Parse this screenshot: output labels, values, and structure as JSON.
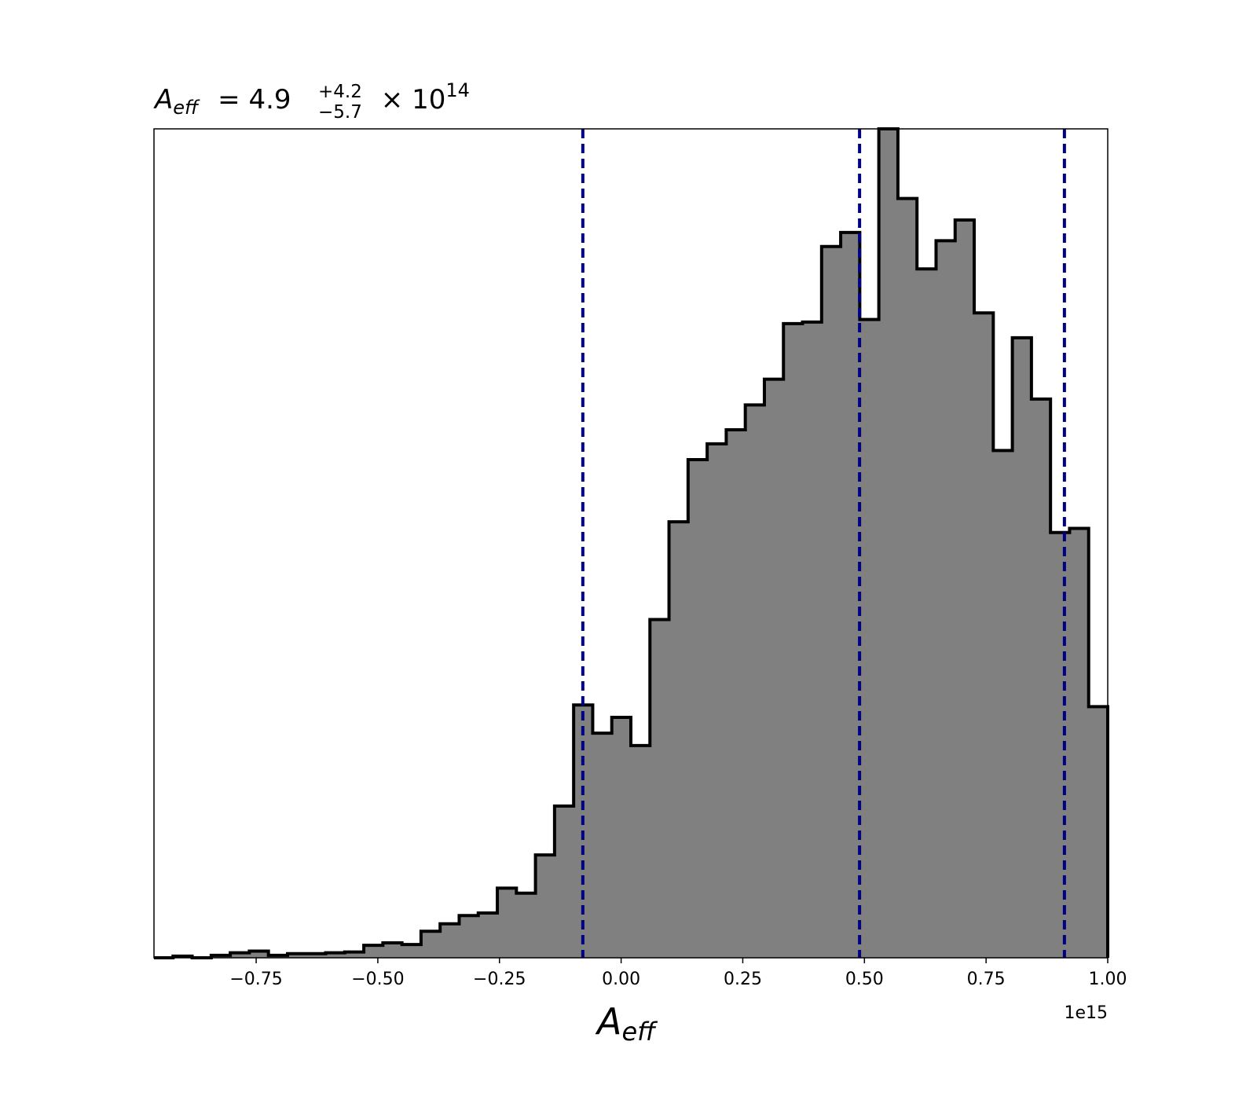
{
  "chart_data": {
    "type": "bar",
    "title": {
      "symbol": "A",
      "symbol_sub": "eff",
      "equals": " = 4.9",
      "upper": "+4.2",
      "lower": "−5.7",
      "times": " × 10",
      "exponent": "14"
    },
    "xlabel": {
      "symbol": "A",
      "sub": "eff"
    },
    "ylabel": "",
    "x_offset_label": "1e15",
    "x_unit_scale": 1000000000000000.0,
    "xlim": [
      -0.96,
      1.0
    ],
    "ylim": [
      0,
      1.0
    ],
    "x_ticks": [
      -0.75,
      -0.5,
      -0.25,
      0.0,
      0.25,
      0.5,
      0.75,
      1.0
    ],
    "x_tick_labels": [
      "−0.75",
      "−0.50",
      "−0.25",
      "0.00",
      "0.25",
      "0.50",
      "0.75",
      "1.00"
    ],
    "bin_edges": [
      -0.96,
      -0.9208,
      -0.8816,
      -0.8424,
      -0.8032,
      -0.764,
      -0.7248,
      -0.6856,
      -0.6464,
      -0.6072,
      -0.568,
      -0.5288,
      -0.4896,
      -0.4504,
      -0.4112,
      -0.372,
      -0.3328,
      -0.2936,
      -0.2544,
      -0.2152,
      -0.176,
      -0.1368,
      -0.0976,
      -0.0584,
      -0.0192,
      0.02,
      0.0592,
      0.0984,
      0.1376,
      0.1768,
      0.216,
      0.2552,
      0.2944,
      0.3336,
      0.3728,
      0.412,
      0.4512,
      0.4904,
      0.5296,
      0.5688,
      0.608,
      0.6472,
      0.6864,
      0.7256,
      0.7648,
      0.804,
      0.8432,
      0.8824,
      0.9216,
      0.9608,
      1.0
    ],
    "values": [
      0.0,
      0.002,
      0.0,
      0.003,
      0.006,
      0.008,
      0.003,
      0.005,
      0.005,
      0.006,
      0.007,
      0.015,
      0.018,
      0.016,
      0.032,
      0.041,
      0.051,
      0.054,
      0.084,
      0.078,
      0.124,
      0.183,
      0.305,
      0.271,
      0.29,
      0.256,
      0.408,
      0.526,
      0.601,
      0.62,
      0.637,
      0.667,
      0.698,
      0.765,
      0.767,
      0.858,
      0.875,
      0.77,
      1.0,
      0.916,
      0.831,
      0.865,
      0.89,
      0.778,
      0.612,
      0.748,
      0.674,
      0.513,
      0.518,
      0.303
    ],
    "fill_color": "#808080",
    "edge_color": "#000000",
    "vlines": [
      -0.0787,
      0.49,
      0.911
    ],
    "vline_color": "#000080",
    "grid": false,
    "legend": "none"
  }
}
